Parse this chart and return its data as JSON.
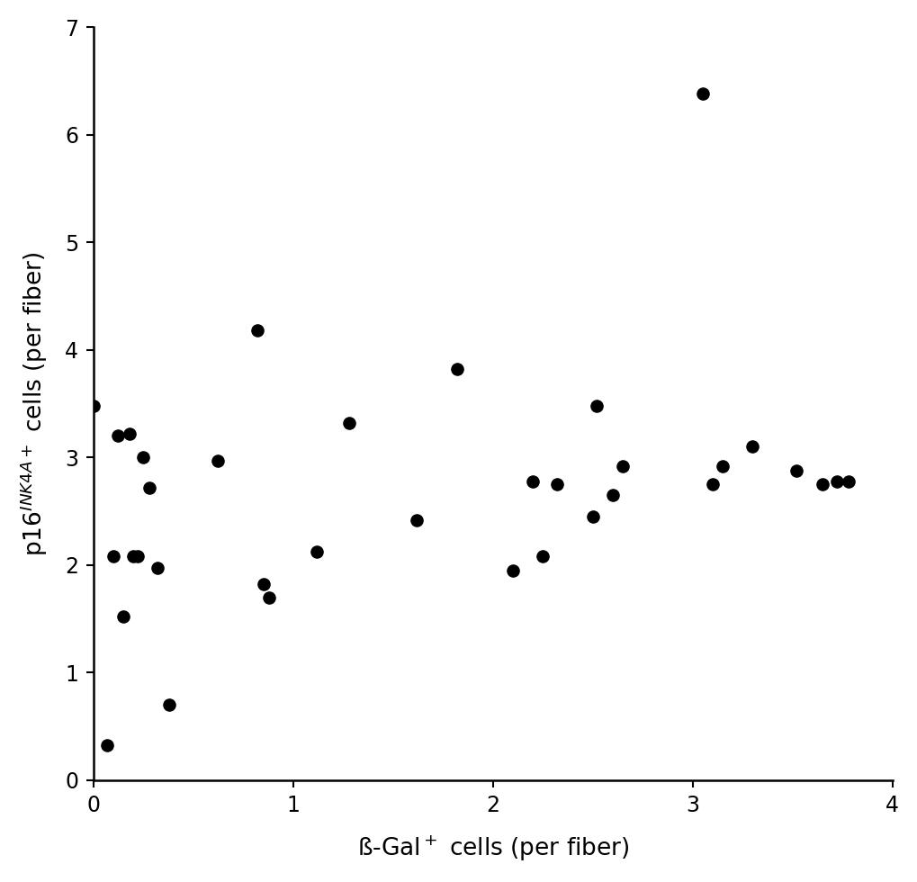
{
  "x": [
    0.0,
    0.07,
    0.1,
    0.12,
    0.15,
    0.18,
    0.2,
    0.22,
    0.25,
    0.28,
    0.32,
    0.38,
    0.62,
    0.82,
    0.85,
    0.88,
    1.12,
    1.28,
    1.62,
    1.82,
    2.1,
    2.2,
    2.25,
    2.32,
    2.5,
    2.52,
    2.6,
    2.65,
    3.05,
    3.1,
    3.15,
    3.3,
    3.52,
    3.65,
    3.72,
    3.78
  ],
  "y": [
    3.48,
    0.32,
    2.08,
    3.2,
    1.52,
    3.22,
    2.08,
    2.08,
    3.0,
    2.72,
    1.97,
    0.7,
    2.97,
    4.18,
    1.82,
    1.7,
    2.12,
    3.32,
    2.42,
    3.82,
    1.95,
    2.78,
    2.08,
    2.75,
    2.45,
    3.48,
    2.65,
    2.92,
    6.38,
    2.75,
    2.92,
    3.1,
    2.88,
    2.75,
    2.78,
    2.78
  ],
  "xlim": [
    0,
    4
  ],
  "ylim": [
    0,
    7
  ],
  "xticks": [
    0,
    1,
    2,
    3,
    4
  ],
  "yticks": [
    0,
    1,
    2,
    3,
    4,
    5,
    6,
    7
  ],
  "marker_color": "#000000",
  "marker_size": 90,
  "background_color": "#ffffff",
  "xlabel_fontsize": 19,
  "ylabel_fontsize": 19,
  "tick_fontsize": 17
}
